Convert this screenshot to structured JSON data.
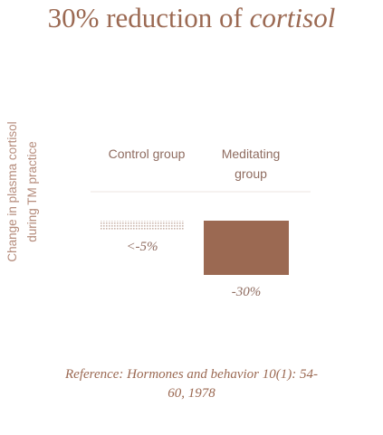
{
  "chart_data": {
    "type": "bar",
    "title": [
      "30% reduction of",
      "cortisol"
    ],
    "y_label": "Change in plasma cortisol during TM practice",
    "categories": [
      "Control group",
      "Meditating group"
    ],
    "values": [
      -5,
      -30
    ],
    "value_labels": [
      "<-5%",
      "-30%"
    ],
    "colors": [
      "#d9c9c2",
      "#9b6952"
    ],
    "ylim": [
      -30,
      0
    ],
    "reference": "Reference: Hormones and behavior 10(1): 54-60, 1978"
  }
}
